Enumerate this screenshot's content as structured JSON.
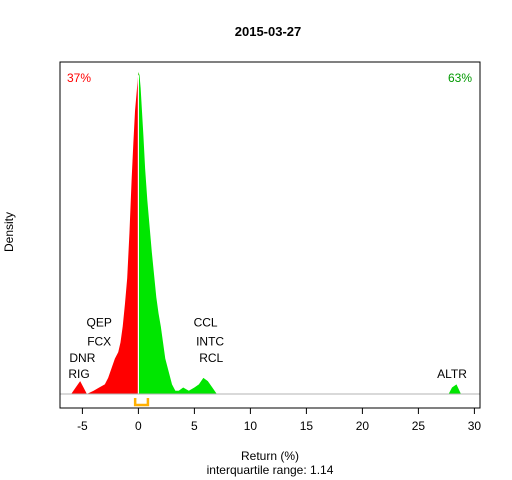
{
  "chart_data": {
    "type": "area",
    "title": "2015-03-27",
    "xlabel": "Return (%)",
    "ylabel": "Density",
    "subtitle": "interquartile range: 1.14",
    "xlim": [
      -7,
      30.5
    ],
    "ylim": [
      0,
      1
    ],
    "x_ticks": [
      -5,
      0,
      5,
      10,
      15,
      20,
      25,
      30
    ],
    "pct_negative": "37%",
    "pct_positive": "63%",
    "colors": {
      "negative": "#ff0000",
      "positive": "#00e600",
      "iqr_marker": "#ffb000",
      "zero_line": "#ffffff",
      "baseline": "#b3b3b3"
    },
    "iqr": [
      -0.29,
      0.85
    ],
    "density": {
      "x": [
        -6.0,
        -5.6,
        -5.2,
        -4.9,
        -4.6,
        -4.0,
        -3.5,
        -3.0,
        -2.7,
        -2.4,
        -2.1,
        -1.8,
        -1.6,
        -1.4,
        -1.2,
        -1.0,
        -0.8,
        -0.6,
        -0.45,
        -0.3,
        -0.15,
        -0.05,
        0.0,
        0.1,
        0.2,
        0.3,
        0.45,
        0.6,
        0.8,
        1.0,
        1.2,
        1.4,
        1.6,
        1.8,
        2.0,
        2.2,
        2.4,
        2.7,
        3.0,
        3.3,
        3.6,
        4.0,
        4.5,
        5.0,
        5.4,
        5.8,
        6.2,
        6.6,
        7.0,
        7.5,
        27.7,
        28.0,
        28.4,
        28.8
      ],
      "y": [
        0.0,
        0.02,
        0.04,
        0.02,
        0.0,
        0.01,
        0.02,
        0.03,
        0.05,
        0.08,
        0.11,
        0.13,
        0.16,
        0.21,
        0.28,
        0.36,
        0.5,
        0.67,
        0.78,
        0.88,
        0.94,
        0.98,
        1.0,
        0.99,
        0.95,
        0.89,
        0.8,
        0.7,
        0.6,
        0.52,
        0.44,
        0.37,
        0.3,
        0.25,
        0.21,
        0.16,
        0.11,
        0.07,
        0.03,
        0.01,
        0.01,
        0.02,
        0.01,
        0.02,
        0.03,
        0.05,
        0.04,
        0.02,
        0.0,
        0.0,
        0.0,
        0.02,
        0.03,
        0.0
      ]
    },
    "annotations": [
      {
        "text": "QEP",
        "x": -3.5,
        "y": 0.21
      },
      {
        "text": "FCX",
        "x": -3.5,
        "y": 0.15
      },
      {
        "text": "DNR",
        "x": -5.0,
        "y": 0.1
      },
      {
        "text": "RIG",
        "x": -5.3,
        "y": 0.05
      },
      {
        "text": "CCL",
        "x": 6.0,
        "y": 0.21
      },
      {
        "text": "INTC",
        "x": 6.4,
        "y": 0.15
      },
      {
        "text": "RCL",
        "x": 6.5,
        "y": 0.1
      },
      {
        "text": "ALTR",
        "x": 28.0,
        "y": 0.05
      }
    ]
  }
}
